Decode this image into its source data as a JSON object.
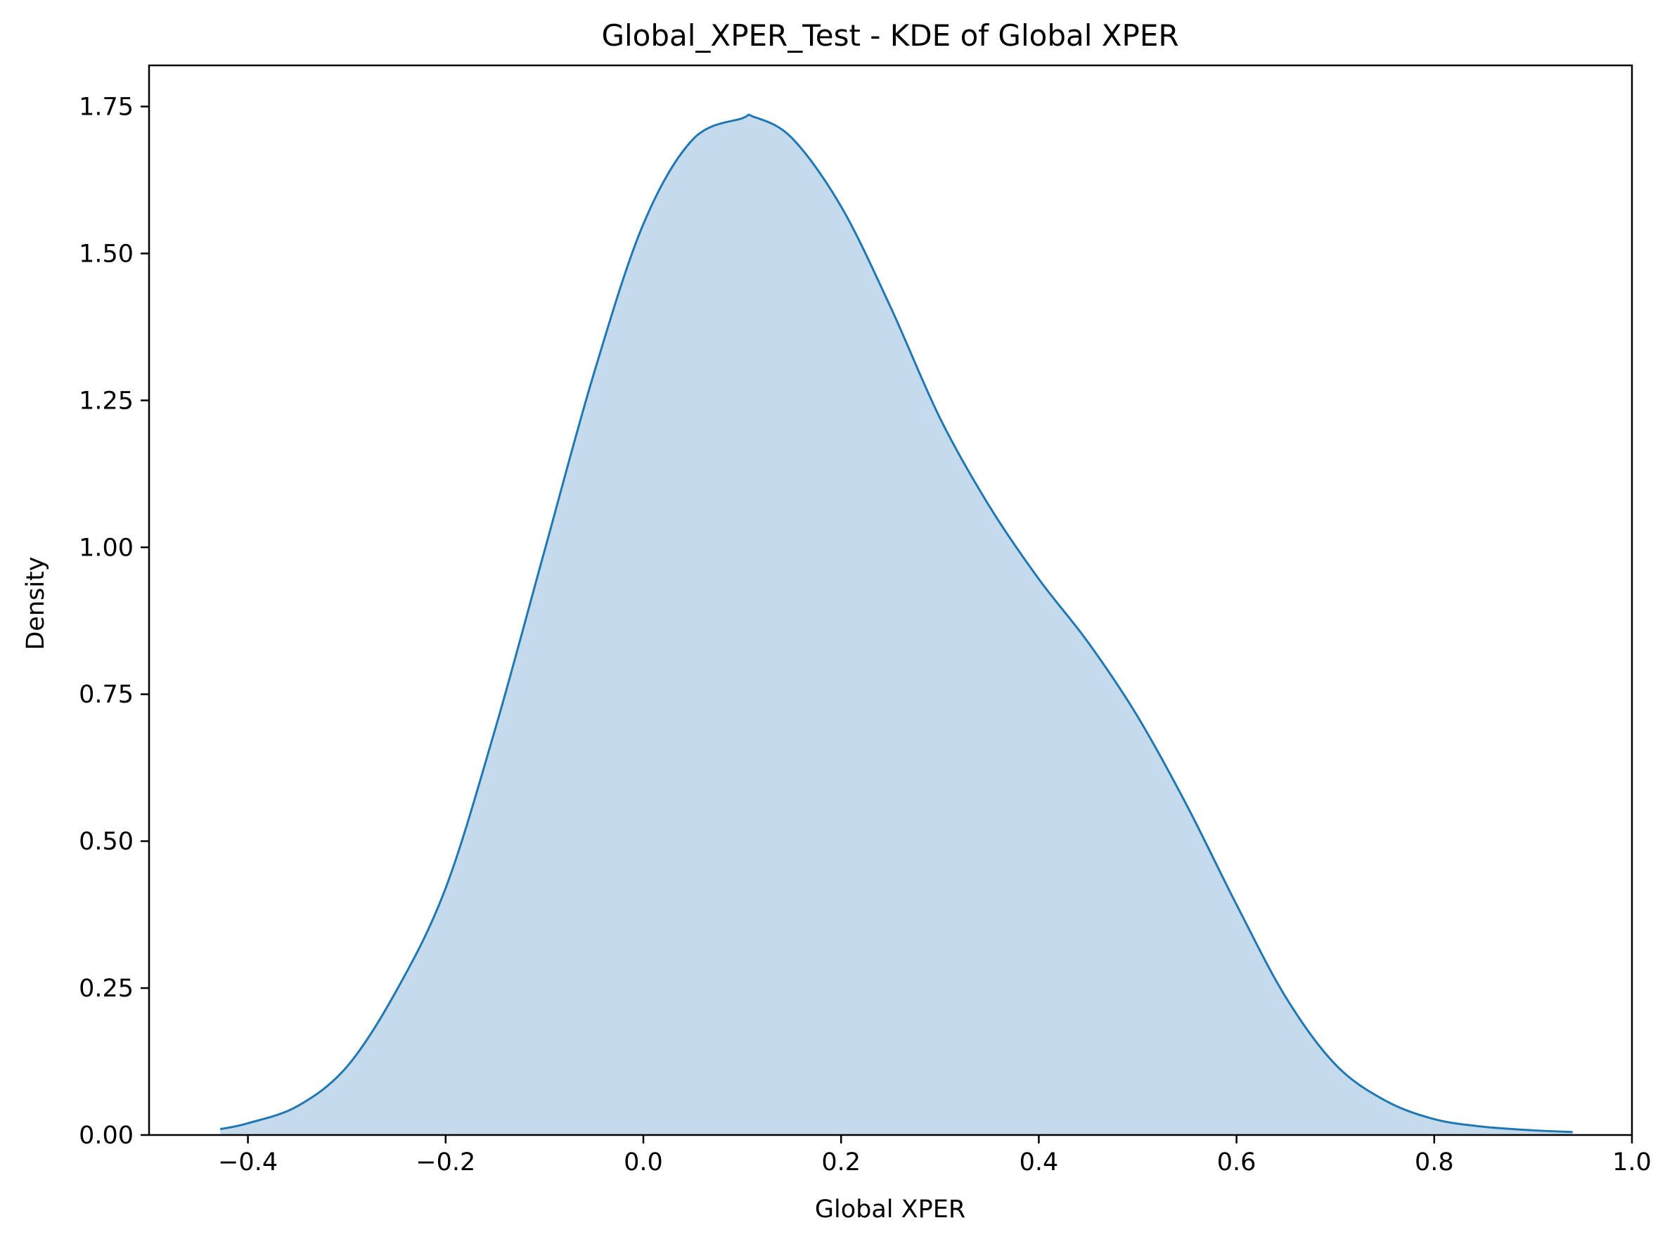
{
  "chart_data": {
    "type": "area",
    "title": "Global_XPER_Test - KDE of Global XPER",
    "xlabel": "Global XPER",
    "ylabel": "Density",
    "xlim": [
      -0.5,
      1.0
    ],
    "ylim": [
      0,
      1.82
    ],
    "xticks": [
      -0.4,
      -0.2,
      0.0,
      0.2,
      0.4,
      0.6,
      0.8,
      1.0
    ],
    "xtick_labels": [
      "−0.4",
      "−0.2",
      "0.0",
      "0.2",
      "0.4",
      "0.6",
      "0.8",
      "1.0"
    ],
    "yticks": [
      0,
      0.25,
      0.5,
      0.75,
      1.0,
      1.25,
      1.5,
      1.75
    ],
    "ytick_labels": [
      "0.00",
      "0.25",
      "0.50",
      "0.75",
      "1.00",
      "1.25",
      "1.50",
      "1.75"
    ],
    "grid": false,
    "legend": "none",
    "series": [
      {
        "color": "#1f77b4",
        "fill_color": "#c5dbec",
        "x": [
          -0.428,
          -0.4,
          -0.35,
          -0.3,
          -0.25,
          -0.2,
          -0.15,
          -0.1,
          -0.05,
          0.0,
          0.05,
          0.1,
          0.111,
          0.15,
          0.2,
          0.25,
          0.3,
          0.35,
          0.4,
          0.45,
          0.5,
          0.55,
          0.6,
          0.65,
          0.7,
          0.75,
          0.8,
          0.85,
          0.9,
          0.94
        ],
        "y": [
          0.01,
          0.02,
          0.049,
          0.116,
          0.245,
          0.42,
          0.69,
          0.994,
          1.296,
          1.55,
          1.694,
          1.73,
          1.733,
          1.697,
          1.58,
          1.409,
          1.22,
          1.07,
          0.946,
          0.838,
          0.712,
          0.56,
          0.392,
          0.234,
          0.12,
          0.059,
          0.027,
          0.014,
          0.008,
          0.005
        ]
      }
    ]
  }
}
